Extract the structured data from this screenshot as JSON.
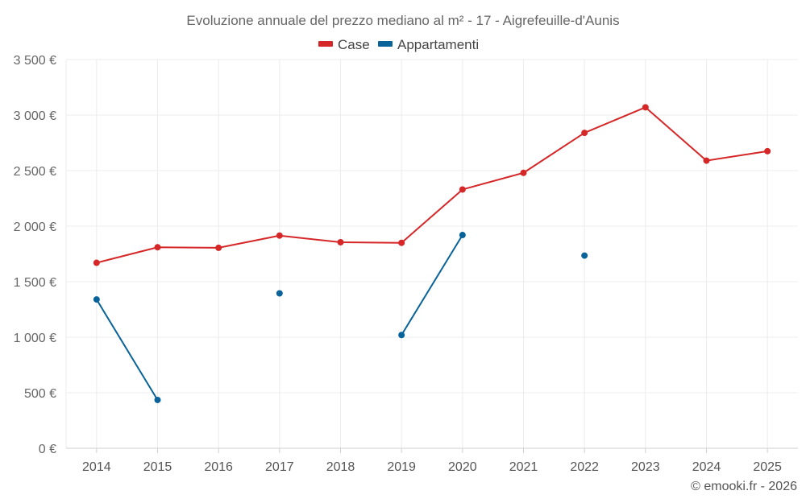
{
  "chart_data": {
    "type": "line",
    "title": "Evoluzione annuale del prezzo mediano al m² - 17 - Aigrefeuille-d'Aunis",
    "categories": [
      "2014",
      "2015",
      "2016",
      "2017",
      "2018",
      "2019",
      "2020",
      "2021",
      "2022",
      "2023",
      "2024",
      "2025"
    ],
    "ylim": [
      0,
      3500
    ],
    "yticks": [
      0,
      500,
      1000,
      1500,
      2000,
      2500,
      3000,
      3500
    ],
    "ytick_labels": [
      "0 €",
      "500 €",
      "1 000 €",
      "1 500 €",
      "2 000 €",
      "2 500 €",
      "3 000 €",
      "3 500 €"
    ],
    "legend_position": "top-center",
    "grid": true,
    "series": [
      {
        "name": "Case",
        "color": "#d62728",
        "values": [
          1670,
          1810,
          1805,
          1915,
          1855,
          1850,
          2330,
          2480,
          2840,
          3070,
          2590,
          2675
        ]
      },
      {
        "name": "Appartamenti",
        "color": "#08639a",
        "values": [
          1340,
          435,
          null,
          1395,
          null,
          1020,
          1920,
          null,
          1735,
          null,
          null,
          null
        ]
      }
    ]
  },
  "credit": "© emooki.fr - 2026"
}
